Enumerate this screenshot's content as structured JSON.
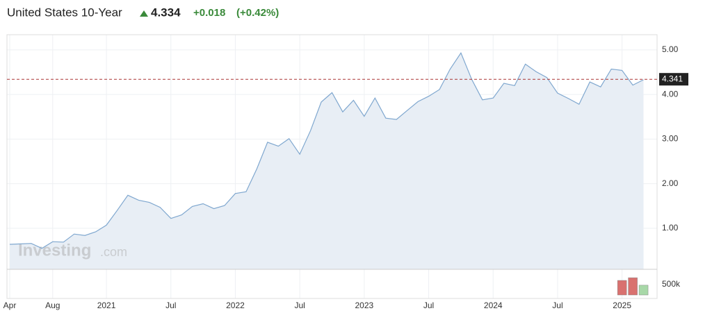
{
  "chart_data": [
    {
      "type": "line",
      "title": "United States 10-Year",
      "price": 4.334,
      "change": "+0.018",
      "change_pct": "(+0.42%)",
      "watermark": [
        "Investing",
        ".com"
      ],
      "last_value": 4.341,
      "color": "#7fa7cf",
      "fill": "#e8eef5",
      "categories": [
        "Apr",
        null,
        null,
        null,
        "Aug",
        null,
        null,
        null,
        null,
        "2021",
        null,
        null,
        null,
        null,
        null,
        "Jul",
        null,
        null,
        null,
        null,
        null,
        "2022",
        null,
        null,
        null,
        null,
        null,
        "Jul",
        null,
        null,
        null,
        null,
        null,
        "2023",
        null,
        null,
        null,
        null,
        null,
        "Jul",
        null,
        null,
        null,
        null,
        null,
        "2024",
        null,
        null,
        null,
        null,
        null,
        "Jul",
        null,
        null,
        null,
        null,
        null,
        "2025",
        null,
        null
      ],
      "values": [
        0.64,
        0.65,
        0.66,
        0.55,
        0.7,
        0.69,
        0.87,
        0.84,
        0.92,
        1.07,
        1.4,
        1.74,
        1.63,
        1.58,
        1.47,
        1.22,
        1.3,
        1.49,
        1.55,
        1.44,
        1.51,
        1.78,
        1.82,
        2.33,
        2.93,
        2.84,
        3.01,
        2.66,
        3.19,
        3.83,
        4.04,
        3.61,
        3.87,
        3.51,
        3.92,
        3.47,
        3.44,
        3.64,
        3.84,
        3.96,
        4.11,
        4.57,
        4.93,
        4.34,
        3.88,
        3.92,
        4.25,
        4.2,
        4.68,
        4.51,
        4.38,
        4.03,
        3.91,
        3.78,
        4.28,
        4.17,
        4.57,
        4.54,
        4.21,
        4.33
      ],
      "ylim": [
        0.08,
        5.34
      ],
      "yticks": [
        {
          "value": 1,
          "label": "1.00"
        },
        {
          "value": 2,
          "label": "2.00"
        },
        {
          "value": 3,
          "label": "3.00"
        },
        {
          "value": 4,
          "label": "4.00"
        },
        {
          "value": 5,
          "label": "5.00"
        }
      ],
      "grid": true
    },
    {
      "type": "bar",
      "values": [
        700000,
        830000,
        470000
      ],
      "colors": [
        "#d9716f",
        "#d9716f",
        "#a8d8a8"
      ],
      "ylim": [
        0,
        1166667
      ],
      "yticks": [
        {
          "value": 500000,
          "label": "500k"
        }
      ]
    }
  ]
}
